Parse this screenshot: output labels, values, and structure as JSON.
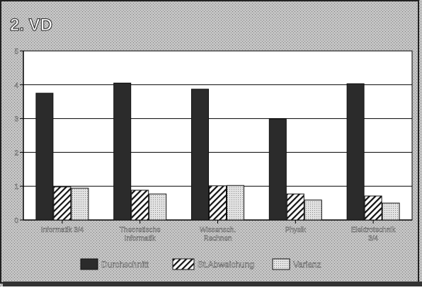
{
  "chart_data": {
    "type": "bar",
    "title": "2. VD",
    "categories": [
      "Informatik 3/4",
      "Theoretische Informatik",
      "Wissensch. Rechnen",
      "Physik",
      "Elektrotechnik 3/4"
    ],
    "category_lines": [
      [
        "Informatik 3/4"
      ],
      [
        "Theoretische",
        "Informatik"
      ],
      [
        "Wissensch.",
        "Rechnen"
      ],
      [
        "Physik"
      ],
      [
        "Elektrotechnik",
        "3/4"
      ]
    ],
    "series": [
      {
        "name": "Durchschnitt",
        "values": [
          3.75,
          4.05,
          3.87,
          2.98,
          4.03
        ],
        "pattern": "dark"
      },
      {
        "name": "St.Abweichung",
        "values": [
          0.98,
          0.88,
          1.01,
          0.77,
          0.71
        ],
        "pattern": "hatch"
      },
      {
        "name": "Varianz",
        "values": [
          0.94,
          0.77,
          1.02,
          0.59,
          0.5
        ],
        "pattern": "dots"
      }
    ],
    "yticks": [
      0,
      1,
      2,
      3,
      4,
      5
    ],
    "ylim": [
      0,
      5
    ],
    "grid": true,
    "legend_position": "bottom",
    "colors": {
      "background": "#b8b8b8",
      "plot": "#ffffff",
      "dark_bar": "#2b2b2b",
      "grid": "#000000"
    }
  }
}
